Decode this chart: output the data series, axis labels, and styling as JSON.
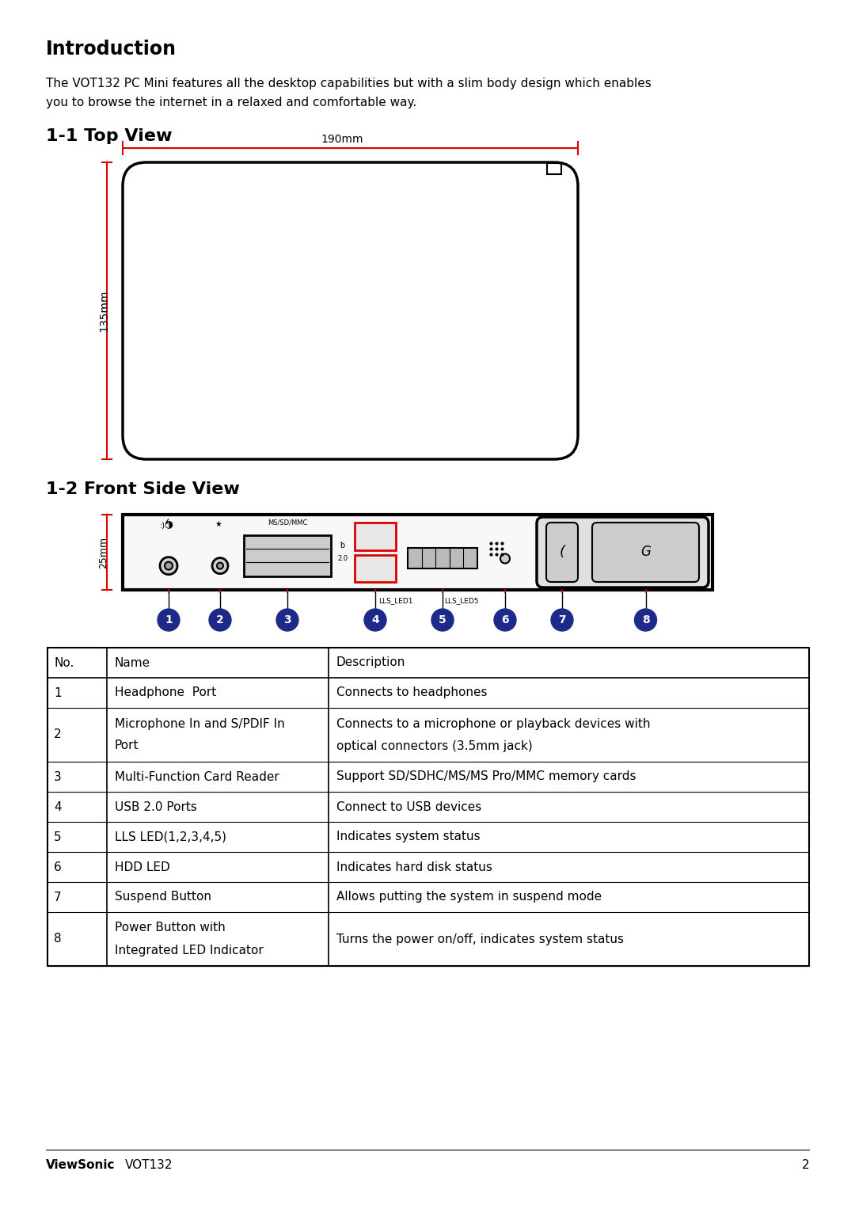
{
  "title": "Introduction",
  "intro_text_line1": "The VOT132 PC Mini features all the desktop capabilities but with a slim body design which enables",
  "intro_text_line2": "you to browse the internet in a relaxed and comfortable way.",
  "section1": "1-1 Top View",
  "section2": "1-2 Front Side View",
  "top_view_width_label": "190mm",
  "top_view_height_label": "135mm",
  "front_view_height_label": "25mm",
  "table_headers": [
    "No.",
    "Name",
    "Description"
  ],
  "table_rows": [
    [
      "1",
      "Headphone  Port",
      "Connects to headphones"
    ],
    [
      "2",
      "Microphone In and S/PDIF In\nPort",
      "Connects to a microphone or playback devices with\noptical connectors (3.5mm jack)"
    ],
    [
      "3",
      "Multi-Function Card Reader",
      "Support SD/SDHC/MS/MS Pro/MMC memory cards"
    ],
    [
      "4",
      "USB 2.0 Ports",
      "Connect to USB devices"
    ],
    [
      "5",
      "LLS LED(1,2,3,4,5)",
      "Indicates system status"
    ],
    [
      "6",
      "HDD LED",
      "Indicates hard disk status"
    ],
    [
      "7",
      "Suspend Button",
      "Allows putting the system in suspend mode"
    ],
    [
      "8",
      "Power Button with\nIntegrated LED Indicator",
      "Turns the power on/off, indicates system status"
    ]
  ],
  "footer_brand": "ViewSonic",
  "footer_model": "VOT132",
  "footer_page": "2",
  "bg_color": "#ffffff",
  "text_color": "#000000",
  "red_color": "#dd0000",
  "circle_color": "#1e2a8a",
  "circle_text_color": "#ffffff"
}
